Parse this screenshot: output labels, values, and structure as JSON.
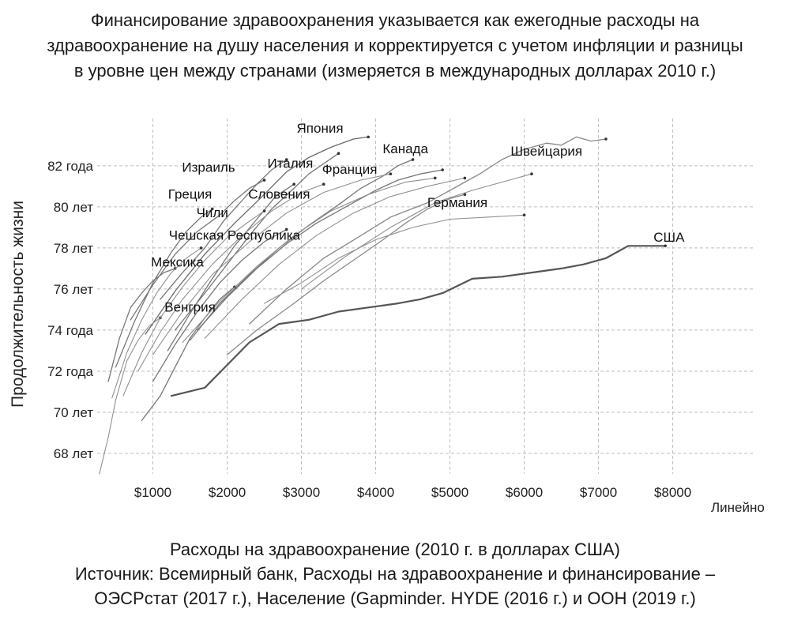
{
  "title_lines": [
    "Финансирование здравоохранения указывается как ежегодные расходы на",
    "здравоохранение на душу населения и корректируется с учетом инфляции и разницы",
    "в уровне цен между странами (измеряется в международных долларах 2010 г.)"
  ],
  "footer_lines": [
    "Расходы на здравоохранение (2010 г. в долларах США)",
    "Источник: Всемирный банк, Расходы на здравоохранение и финансирование –",
    "ОЭСРстат (2017 г.), Население (Gapminder. HYDE (2016 г.) и ООН (2019 г.)"
  ],
  "chart_data": {
    "type": "line",
    "xlabel": "Расходы на здравоохранение (2010 г. в долларах США)",
    "ylabel": "Продолжительность жизни",
    "scale_label": "Линейно",
    "xlim": [
      250,
      9100
    ],
    "ylim": [
      67.0,
      84.3
    ],
    "x_ticks": [
      {
        "value": 1000,
        "label": "$1000"
      },
      {
        "value": 2000,
        "label": "$2000"
      },
      {
        "value": 3000,
        "label": "$3000"
      },
      {
        "value": 4000,
        "label": "$4000"
      },
      {
        "value": 5000,
        "label": "$5000"
      },
      {
        "value": 6000,
        "label": "$6000"
      },
      {
        "value": 7000,
        "label": "$7000"
      },
      {
        "value": 8000,
        "label": "$8000"
      }
    ],
    "y_ticks": [
      {
        "value": 68,
        "label": "68 лет"
      },
      {
        "value": 70,
        "label": "70 лет"
      },
      {
        "value": 72,
        "label": "72 года"
      },
      {
        "value": 74,
        "label": "74 года"
      },
      {
        "value": 76,
        "label": "76 лет"
      },
      {
        "value": 78,
        "label": "78 лет"
      },
      {
        "value": 80,
        "label": "80 лет"
      },
      {
        "value": 82,
        "label": "82 года"
      }
    ],
    "grid": true,
    "series": [
      {
        "name": "США",
        "color": "#555555",
        "width": 2.2,
        "points": [
          [
            1250,
            70.8
          ],
          [
            1700,
            71.2
          ],
          [
            2000,
            72.3
          ],
          [
            2300,
            73.4
          ],
          [
            2700,
            74.3
          ],
          [
            3100,
            74.5
          ],
          [
            3500,
            74.9
          ],
          [
            3900,
            75.1
          ],
          [
            4300,
            75.3
          ],
          [
            4600,
            75.5
          ],
          [
            4900,
            75.8
          ],
          [
            5300,
            76.5
          ],
          [
            5700,
            76.6
          ],
          [
            6100,
            76.8
          ],
          [
            6500,
            77.0
          ],
          [
            6800,
            77.2
          ],
          [
            7100,
            77.5
          ],
          [
            7400,
            78.1
          ],
          [
            7900,
            78.1
          ]
        ]
      },
      {
        "name": "Швейцария",
        "color": "#888888",
        "width": 1.3,
        "points": [
          [
            2300,
            74.3
          ],
          [
            2800,
            76.0
          ],
          [
            3300,
            77.5
          ],
          [
            3800,
            78.6
          ],
          [
            4200,
            79.5
          ],
          [
            4700,
            80.2
          ],
          [
            5000,
            80.8
          ],
          [
            5400,
            81.6
          ],
          [
            5700,
            82.3
          ],
          [
            6000,
            82.8
          ],
          [
            6300,
            83.1
          ],
          [
            6500,
            83.0
          ],
          [
            6700,
            83.4
          ],
          [
            6900,
            83.2
          ],
          [
            7100,
            83.3
          ]
        ]
      },
      {
        "name": "Германия",
        "color": "#8a8a8a",
        "width": 1.3,
        "points": [
          [
            2000,
            72.8
          ],
          [
            2400,
            74.0
          ],
          [
            2900,
            75.3
          ],
          [
            3300,
            76.4
          ],
          [
            3700,
            77.4
          ],
          [
            4100,
            78.4
          ],
          [
            4400,
            79.2
          ],
          [
            4700,
            79.9
          ],
          [
            5000,
            80.4
          ],
          [
            5200,
            80.6
          ]
        ]
      },
      {
        "name": "Канада",
        "color": "#777777",
        "width": 1.3,
        "points": [
          [
            1600,
            74.0
          ],
          [
            2000,
            75.6
          ],
          [
            2400,
            77.0
          ],
          [
            2800,
            78.2
          ],
          [
            3200,
            79.2
          ],
          [
            3600,
            80.0
          ],
          [
            4000,
            80.8
          ],
          [
            4300,
            81.3
          ],
          [
            4600,
            81.6
          ],
          [
            4900,
            81.8
          ]
        ]
      },
      {
        "name": "Франция",
        "color": "#777777",
        "width": 1.3,
        "points": [
          [
            1500,
            73.5
          ],
          [
            1900,
            75.3
          ],
          [
            2300,
            76.7
          ],
          [
            2700,
            78.0
          ],
          [
            3100,
            79.1
          ],
          [
            3500,
            80.1
          ],
          [
            3800,
            80.9
          ],
          [
            4100,
            81.5
          ],
          [
            4300,
            82.0
          ],
          [
            4500,
            82.3
          ]
        ]
      },
      {
        "name": "Япония",
        "color": "#6a6a6a",
        "width": 1.3,
        "points": [
          [
            900,
            73.8
          ],
          [
            1300,
            75.9
          ],
          [
            1700,
            77.7
          ],
          [
            2100,
            79.2
          ],
          [
            2500,
            80.6
          ],
          [
            2800,
            81.7
          ],
          [
            3100,
            82.4
          ],
          [
            3400,
            82.9
          ],
          [
            3700,
            83.3
          ],
          [
            3900,
            83.4
          ]
        ]
      },
      {
        "name": "Италия",
        "color": "#777777",
        "width": 1.3,
        "points": [
          [
            1300,
            74.0
          ],
          [
            1700,
            75.8
          ],
          [
            2000,
            77.2
          ],
          [
            2300,
            78.6
          ],
          [
            2600,
            79.9
          ],
          [
            2900,
            80.9
          ],
          [
            3100,
            81.6
          ],
          [
            3300,
            82.1
          ],
          [
            3500,
            82.6
          ]
        ]
      },
      {
        "name": "Израиль",
        "color": "#777777",
        "width": 1.3,
        "points": [
          [
            1100,
            75.5
          ],
          [
            1400,
            76.8
          ],
          [
            1700,
            78.0
          ],
          [
            1950,
            79.3
          ],
          [
            2200,
            80.3
          ],
          [
            2400,
            81.1
          ],
          [
            2600,
            81.8
          ],
          [
            2800,
            82.3
          ]
        ]
      },
      {
        "name": "Греция",
        "color": "#777777",
        "width": 1.3,
        "points": [
          [
            700,
            74.5
          ],
          [
            1000,
            76.2
          ],
          [
            1300,
            77.7
          ],
          [
            1600,
            78.8
          ],
          [
            1900,
            79.6
          ],
          [
            2100,
            80.3
          ],
          [
            2300,
            80.9
          ],
          [
            2500,
            81.3
          ]
        ]
      },
      {
        "name": "Словения",
        "color": "#777777",
        "width": 1.3,
        "points": [
          [
            1200,
            73.0
          ],
          [
            1500,
            74.8
          ],
          [
            1800,
            76.5
          ],
          [
            2100,
            78.1
          ],
          [
            2400,
            79.4
          ],
          [
            2650,
            80.5
          ],
          [
            2900,
            81.1
          ]
        ]
      },
      {
        "name": "Чили",
        "color": "#777777",
        "width": 1.3,
        "points": [
          [
            500,
            72.2
          ],
          [
            750,
            74.4
          ],
          [
            1000,
            76.3
          ],
          [
            1250,
            77.8
          ],
          [
            1450,
            78.8
          ],
          [
            1650,
            79.5
          ],
          [
            1800,
            79.9
          ]
        ]
      },
      {
        "name": "Чешская Республика",
        "color": "#777777",
        "width": 1.3,
        "points": [
          [
            1000,
            71.5
          ],
          [
            1300,
            73.3
          ],
          [
            1600,
            74.9
          ],
          [
            1900,
            76.3
          ],
          [
            2200,
            77.4
          ],
          [
            2500,
            78.3
          ],
          [
            2800,
            78.9
          ]
        ]
      },
      {
        "name": "Мексика",
        "color": "#777777",
        "width": 1.3,
        "points": [
          [
            400,
            71.5
          ],
          [
            550,
            73.6
          ],
          [
            700,
            75.1
          ],
          [
            850,
            75.8
          ],
          [
            1000,
            76.4
          ],
          [
            1150,
            76.8
          ],
          [
            1300,
            77.0
          ]
        ]
      },
      {
        "name": "Венгрия",
        "color": "#777777",
        "width": 1.3,
        "points": [
          [
            850,
            69.6
          ],
          [
            1100,
            70.8
          ],
          [
            1300,
            72.2
          ],
          [
            1500,
            73.6
          ],
          [
            1700,
            74.6
          ],
          [
            1900,
            75.5
          ],
          [
            2100,
            76.1
          ]
        ]
      },
      {
        "name": "",
        "color": "#909090",
        "width": 1.1,
        "points": [
          [
            280,
            67.0
          ],
          [
            400,
            68.8
          ],
          [
            500,
            70.6
          ],
          [
            650,
            72.5
          ],
          [
            800,
            73.5
          ],
          [
            950,
            74.2
          ],
          [
            1100,
            74.6
          ]
        ]
      },
      {
        "name": "",
        "color": "#909090",
        "width": 1.1,
        "points": [
          [
            450,
            70.7
          ],
          [
            650,
            72.9
          ],
          [
            850,
            74.5
          ],
          [
            1050,
            75.8
          ],
          [
            1250,
            76.8
          ],
          [
            1450,
            77.5
          ],
          [
            1650,
            78.0
          ]
        ]
      },
      {
        "name": "",
        "color": "#909090",
        "width": 1.1,
        "points": [
          [
            600,
            70.8
          ],
          [
            850,
            72.9
          ],
          [
            1100,
            74.6
          ],
          [
            1400,
            76.1
          ],
          [
            1700,
            77.4
          ],
          [
            2000,
            78.5
          ],
          [
            2300,
            79.3
          ],
          [
            2500,
            79.8
          ]
        ]
      },
      {
        "name": "",
        "color": "#909090",
        "width": 1.1,
        "points": [
          [
            800,
            72.0
          ],
          [
            1100,
            73.9
          ],
          [
            1400,
            75.5
          ],
          [
            1800,
            77.2
          ],
          [
            2200,
            78.6
          ],
          [
            2600,
            79.8
          ],
          [
            3000,
            80.7
          ],
          [
            3300,
            81.1
          ]
        ]
      },
      {
        "name": "",
        "color": "#909090",
        "width": 1.1,
        "points": [
          [
            1000,
            72.8
          ],
          [
            1400,
            74.9
          ],
          [
            1800,
            76.7
          ],
          [
            2300,
            78.3
          ],
          [
            2800,
            79.7
          ],
          [
            3300,
            80.7
          ],
          [
            3800,
            81.3
          ],
          [
            4200,
            81.6
          ]
        ]
      },
      {
        "name": "",
        "color": "#909090",
        "width": 1.1,
        "points": [
          [
            1400,
            73.4
          ],
          [
            1900,
            75.4
          ],
          [
            2400,
            77.1
          ],
          [
            2900,
            78.6
          ],
          [
            3400,
            79.8
          ],
          [
            3900,
            80.6
          ],
          [
            4400,
            81.2
          ],
          [
            4800,
            81.4
          ]
        ]
      },
      {
        "name": "",
        "color": "#909090",
        "width": 1.1,
        "points": [
          [
            1700,
            73.6
          ],
          [
            2200,
            75.5
          ],
          [
            2700,
            77.2
          ],
          [
            3200,
            78.6
          ],
          [
            3700,
            79.7
          ],
          [
            4200,
            80.5
          ],
          [
            4700,
            81.0
          ],
          [
            5200,
            81.4
          ]
        ]
      },
      {
        "name": "",
        "color": "#909090",
        "width": 1.1,
        "points": [
          [
            2500,
            75.3
          ],
          [
            3000,
            76.3
          ],
          [
            3500,
            77.5
          ],
          [
            4000,
            78.4
          ],
          [
            4500,
            79.0
          ],
          [
            5000,
            79.4
          ],
          [
            5500,
            79.5
          ],
          [
            6000,
            79.6
          ]
        ]
      },
      {
        "name": "",
        "color": "#909090",
        "width": 1.1,
        "points": [
          [
            3000,
            76.0
          ],
          [
            3600,
            77.6
          ],
          [
            4200,
            79.0
          ],
          [
            4800,
            80.2
          ],
          [
            5300,
            80.8
          ],
          [
            5800,
            81.3
          ],
          [
            6100,
            81.6
          ]
        ]
      }
    ],
    "labels": [
      {
        "text": "Япония",
        "x": 3250,
        "y": 83.6
      },
      {
        "text": "Канада",
        "x": 4400,
        "y": 82.6
      },
      {
        "text": "Швейцария",
        "x": 6300,
        "y": 82.5
      },
      {
        "text": "Израиль",
        "x": 1750,
        "y": 81.7
      },
      {
        "text": "Италия",
        "x": 2850,
        "y": 81.9
      },
      {
        "text": "Франция",
        "x": 3650,
        "y": 81.6
      },
      {
        "text": "Греция",
        "x": 1500,
        "y": 80.4
      },
      {
        "text": "Словения",
        "x": 2700,
        "y": 80.4
      },
      {
        "text": "Германия",
        "x": 5100,
        "y": 80.0
      },
      {
        "text": "Чили",
        "x": 1800,
        "y": 79.5
      },
      {
        "text": "США",
        "x": 7950,
        "y": 78.3
      },
      {
        "text": "Чешская Республика",
        "x": 2100,
        "y": 78.4
      },
      {
        "text": "Мексика",
        "x": 1330,
        "y": 77.1
      },
      {
        "text": "Венгрия",
        "x": 1500,
        "y": 74.9
      }
    ]
  }
}
